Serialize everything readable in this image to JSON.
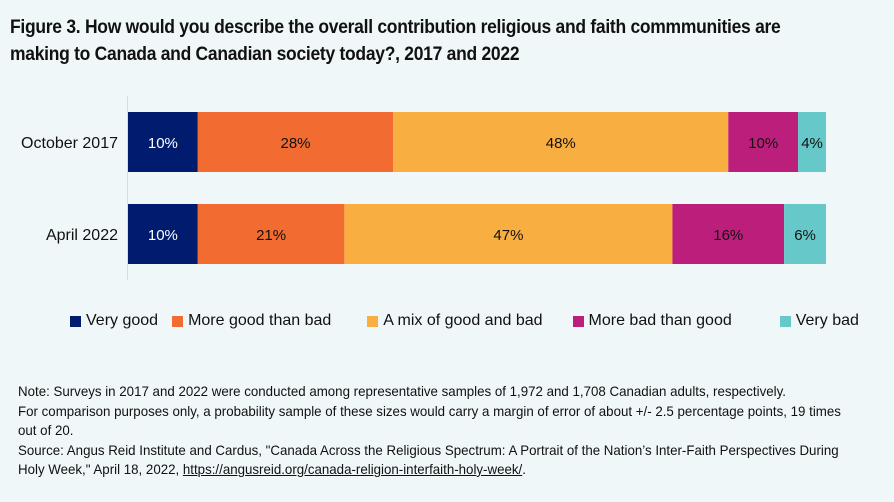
{
  "title": "Figure 3. How would you describe the overall contribution religious and faith commmunities are making to Canada and Canadian society today?, 2017 and 2022",
  "chart_data": {
    "type": "bar",
    "orientation": "horizontal",
    "stacked": true,
    "percent": true,
    "title": "Figure 3. How would you describe the overall contribution religious and faith commmunities are making to Canada and Canadian society today?, 2017 and 2022",
    "categories": [
      "October 2017",
      "April 2022"
    ],
    "series": [
      {
        "name": "Very good",
        "color": "#011c6e",
        "label_color": "#ffffff",
        "values": [
          10,
          10
        ]
      },
      {
        "name": "More good than bad",
        "color": "#f26b31",
        "label_color": "#111111",
        "values": [
          28,
          21
        ]
      },
      {
        "name": "A mix of good and bad",
        "color": "#f9ae42",
        "label_color": "#111111",
        "values": [
          48,
          47
        ]
      },
      {
        "name": "More bad than good",
        "color": "#bb1f7b",
        "label_color": "#111111",
        "values": [
          10,
          16
        ]
      },
      {
        "name": "Very bad",
        "color": "#67c8c9",
        "label_color": "#111111",
        "values": [
          4,
          6
        ]
      }
    ],
    "data_labels": [
      [
        "10%",
        "28%",
        "48%",
        "10%",
        "4%"
      ],
      [
        "10%",
        "21%",
        "47%",
        "16%",
        "6%"
      ]
    ],
    "xlim": [
      0,
      100
    ],
    "xlabel": "",
    "ylabel": "",
    "grid": false,
    "legend": "bottom"
  },
  "note": {
    "line1": "Note: Surveys in 2017 and 2022 were conducted among representative samples of 1,972 and 1,708 Canadian adults, respectively.",
    "line2": "For comparison purposes only, a probability sample of these sizes would carry a margin of error of about +/- 2.5 percentage points, 19 times out of 20.",
    "source": "Source: Angus Reid Institute and Cardus, \"Canada Across the Religious Spectrum: A Portrait of the Nation’s Inter-Faith Perspectives During Holy Week,\" April 18, 2022, ",
    "link": "https://angusreid.org/canada-religion-interfaith-holy-week/",
    "end": "."
  }
}
